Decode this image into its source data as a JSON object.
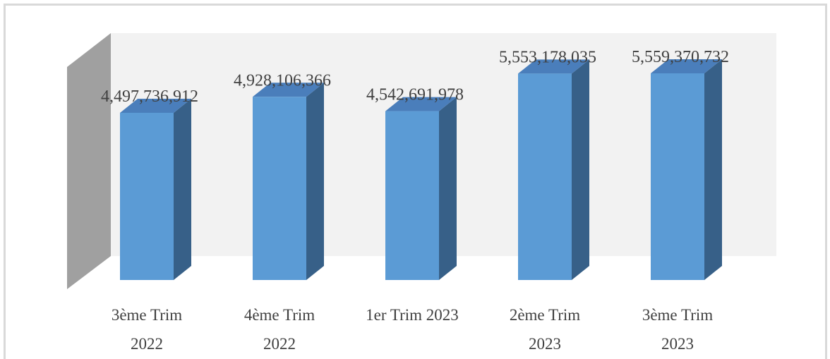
{
  "chart_data": {
    "type": "bar3d",
    "categories": [
      "3ème Trim 2022",
      "4ème Trim 2022",
      "1er Trim 2023",
      "2ème Trim 2023",
      "3ème Trim 2023"
    ],
    "values": [
      4497736912,
      4928106366,
      4542691978,
      5553178035,
      5559370732
    ],
    "value_labels": [
      "4,497,736,912",
      "4,928,106,366",
      "4,542,691,978",
      "5,553,178,035",
      "5,559,370,732"
    ],
    "color": "#5b9bd5"
  }
}
